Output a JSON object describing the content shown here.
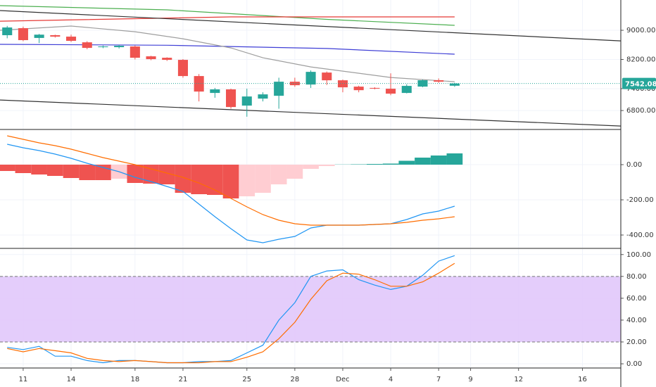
{
  "chart_data": [
    {
      "type": "candlestick",
      "x": [
        10,
        11,
        12,
        13,
        14,
        15,
        16,
        17,
        18,
        19,
        20,
        21,
        22,
        23,
        24,
        25,
        26,
        27,
        28,
        29,
        30,
        31,
        32,
        33,
        34,
        35,
        36,
        37,
        38
      ],
      "open": [
        8865,
        9058,
        8790,
        8865,
        8826,
        8670,
        8537,
        8537,
        8556,
        8286,
        8247,
        8189,
        7745,
        7282,
        7380,
        6935,
        7127,
        7204,
        7590,
        7513,
        7841,
        7629,
        7455,
        7420,
        7398,
        7282,
        7456,
        7630,
        7480
      ],
      "close": [
        9077,
        8730,
        8880,
        8826,
        8710,
        8517,
        8556,
        8575,
        8247,
        8208,
        8189,
        7745,
        7320,
        7380,
        6896,
        7185,
        7243,
        7590,
        7494,
        7860,
        7629,
        7436,
        7358,
        7400,
        7263,
        7475,
        7630,
        7590,
        7542.08
      ],
      "high": [
        9120,
        9100,
        8900,
        8880,
        8880,
        8700,
        8580,
        8600,
        8580,
        8300,
        8260,
        8210,
        7800,
        7420,
        7400,
        7400,
        7300,
        7700,
        7700,
        7900,
        7870,
        7650,
        7480,
        7440,
        7820,
        7520,
        7650,
        7680,
        7560
      ],
      "low": [
        8780,
        8700,
        8650,
        8800,
        8680,
        8480,
        8510,
        8500,
        8200,
        8180,
        8160,
        7700,
        7050,
        7150,
        6850,
        6630,
        7050,
        6850,
        7450,
        7420,
        7500,
        7300,
        7300,
        7380,
        7220,
        7270,
        7440,
        7560,
        7450
      ],
      "up_color": "#26a69a",
      "down_color": "#ef5350",
      "overlays": [
        {
          "color": "#4caf50",
          "x": [
            9.55,
            20,
            30,
            38
          ],
          "values": [
            9676,
            9560,
            9300,
            9135
          ]
        },
        {
          "color": "#e53935",
          "x": [
            9.55,
            24,
            38
          ],
          "values": [
            9250,
            9367,
            9367
          ]
        },
        {
          "color": "#3f3fd6",
          "x": [
            9.55,
            20,
            30,
            38
          ],
          "values": [
            8614,
            8590,
            8500,
            8344
          ]
        },
        {
          "color": "#9e9e9e",
          "x": [
            9.55,
            14,
            18,
            21,
            24,
            26,
            29,
            34,
            38
          ],
          "values": [
            9000,
            9116,
            8961,
            8768,
            8517,
            8247,
            7996,
            7707,
            7591
          ]
        },
        {
          "color": "#333333",
          "x": [
            9.55,
            48.4
          ],
          "values": [
            9540,
            8710
          ]
        },
        {
          "color": "#333333",
          "x": [
            9.55,
            48.4
          ],
          "values": [
            7089,
            6375
          ]
        }
      ],
      "xlim": [
        9.55,
        48.4
      ],
      "ylim": [
        6300,
        9830
      ],
      "yticks": [
        {
          "value": 6800,
          "label": "6800.00"
        },
        {
          "value": 7400,
          "label": "7400.00"
        },
        {
          "value": 8200,
          "label": "8200.00"
        },
        {
          "value": 9000,
          "label": "9000.00"
        }
      ],
      "grid": true
    },
    {
      "type": "macd",
      "x": [
        10,
        11,
        12,
        13,
        14,
        15,
        16,
        17,
        18,
        19,
        20,
        21,
        22,
        23,
        24,
        25,
        26,
        27,
        28,
        29,
        30,
        31,
        32,
        33,
        34,
        35,
        36,
        37,
        38
      ],
      "histogram": [
        -36,
        -48,
        -56,
        -64,
        -76,
        -88,
        -88,
        -80,
        -104,
        -108,
        -112,
        -160,
        -168,
        -172,
        -192,
        -180,
        -160,
        -112,
        -80,
        -24,
        -8,
        1,
        2,
        4,
        6,
        22,
        40,
        52,
        64
      ],
      "histogram_colors": [
        "#ef5350",
        "#ef5350",
        "#ef5350",
        "#ef5350",
        "#ef5350",
        "#ef5350",
        "#ef5350",
        "#ffcdd2",
        "#ef5350",
        "#ef5350",
        "#ef5350",
        "#ef5350",
        "#ef5350",
        "#ef5350",
        "#ef5350",
        "#ffcdd2",
        "#ffcdd2",
        "#ffcdd2",
        "#ffcdd2",
        "#ffcdd2",
        "#ffcdd2",
        "#26a69a",
        "#26a69a",
        "#26a69a",
        "#26a69a",
        "#26a69a",
        "#26a69a",
        "#26a69a",
        "#26a69a"
      ],
      "series": [
        {
          "color": "#2196f3",
          "values": [
            116,
            96,
            80,
            60,
            36,
            8,
            -16,
            -40,
            -72,
            -96,
            -124,
            -152,
            -224,
            -296,
            -364,
            -428,
            -444,
            -424,
            -408,
            -360,
            -344,
            -344,
            -344,
            -340,
            -336,
            -312,
            -280,
            -264,
            -236
          ]
        },
        {
          "color": "#ff6d00",
          "values": [
            164,
            144,
            124,
            108,
            88,
            64,
            40,
            20,
            0,
            -24,
            -48,
            -72,
            -104,
            -144,
            -192,
            -240,
            -284,
            -316,
            -336,
            -344,
            -344,
            -344,
            -344,
            -340,
            -336,
            -328,
            -316,
            -308,
            -296
          ]
        }
      ],
      "xlim": [
        9.55,
        48.4
      ],
      "ylim": [
        -472,
        196
      ],
      "yticks": [
        {
          "value": -400,
          "label": "-400.00"
        },
        {
          "value": -200,
          "label": "-200.00"
        },
        {
          "value": 0,
          "label": "0.00"
        }
      ],
      "grid": true
    },
    {
      "type": "stochastic",
      "x": [
        10,
        11,
        12,
        13,
        14,
        15,
        16,
        17,
        18,
        19,
        20,
        21,
        22,
        23,
        24,
        25,
        26,
        27,
        28,
        29,
        30,
        31,
        32,
        33,
        34,
        35,
        36,
        37,
        38
      ],
      "series": [
        {
          "color": "#2196f3",
          "values": [
            15,
            13,
            16,
            7,
            7,
            3,
            1,
            3,
            3,
            2,
            1,
            1,
            2,
            2,
            3,
            10,
            17,
            40,
            56,
            80,
            85,
            86,
            77,
            72,
            68,
            71,
            81,
            94,
            99
          ]
        },
        {
          "color": "#ff6d00",
          "values": [
            14,
            11,
            14,
            12,
            10,
            5,
            3,
            2,
            3,
            2,
            1,
            1,
            1,
            2,
            2,
            6,
            11,
            23,
            38,
            59,
            76,
            83,
            82,
            77,
            71,
            71,
            75,
            83,
            92
          ]
        }
      ],
      "band": [
        20,
        80
      ],
      "band_color": "#e1c8fb",
      "xlim": [
        9.55,
        48.4
      ],
      "ylim": [
        -3.2,
        105
      ],
      "yticks": [
        {
          "value": 0,
          "label": "0.00"
        },
        {
          "value": 20,
          "label": "20.00"
        },
        {
          "value": 40,
          "label": "40.00"
        },
        {
          "value": 60,
          "label": "60.00"
        },
        {
          "value": 80,
          "label": "80.00"
        },
        {
          "value": 100,
          "label": "100.00"
        }
      ],
      "xticks": [
        11,
        14,
        18,
        21,
        25,
        28,
        {
          "value": 31,
          "label": "Dec"
        },
        {
          "value": 34,
          "label": "4"
        },
        {
          "value": 37,
          "label": "7"
        },
        {
          "value": 39,
          "label": "9"
        },
        {
          "value": 42,
          "label": "12"
        },
        {
          "value": 46,
          "label": "16"
        }
      ],
      "grid": true
    }
  ]
}
